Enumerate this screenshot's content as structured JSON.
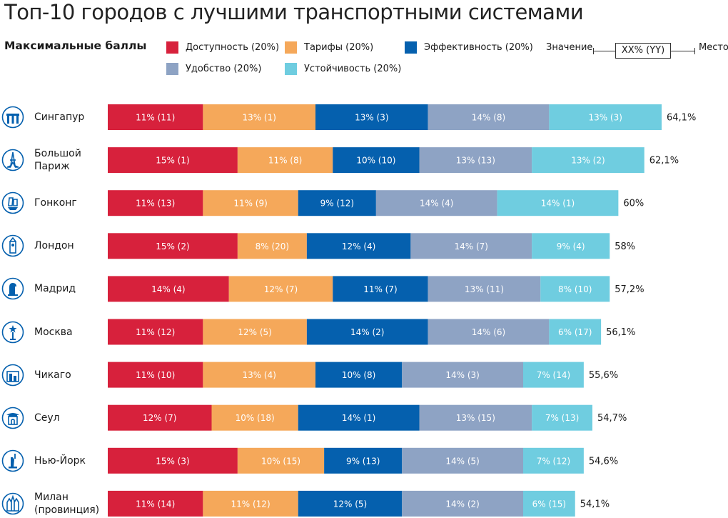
{
  "title": "Топ-10 городов с лучшими транспортными системами",
  "subtitle": "Максимальные баллы",
  "legend": [
    {
      "label": "Доступность (20%)",
      "color": "#d7213c"
    },
    {
      "label": "Тарифы (20%)",
      "color": "#f5a85a"
    },
    {
      "label": "Эффективность (20%)",
      "color": "#0560ae"
    },
    {
      "label": "Удобство (20%)",
      "color": "#8ea3c4"
    },
    {
      "label": "Устойчивость (20%)",
      "color": "#6fcde0"
    }
  ],
  "key": {
    "value_label": "Значение",
    "box_label": "XX% (YY)",
    "rank_label": "Место"
  },
  "chart_data": {
    "type": "bar",
    "orientation": "horizontal",
    "stacked": true,
    "title": "Топ-10 городов с лучшими транспортными системами",
    "categories": [
      {
        "lines": [
          "Сингапур"
        ],
        "icon": "singapore-icon",
        "total": "64,1%"
      },
      {
        "lines": [
          "Большой",
          "Париж"
        ],
        "icon": "eiffel-tower-icon",
        "total": "62,1%"
      },
      {
        "lines": [
          "Гонконг"
        ],
        "icon": "junk-boat-icon",
        "total": "60%"
      },
      {
        "lines": [
          "Лондон"
        ],
        "icon": "big-ben-icon",
        "total": "58%"
      },
      {
        "lines": [
          "Мадрид"
        ],
        "icon": "madrid-icon",
        "total": "57,2%"
      },
      {
        "lines": [
          "Москва"
        ],
        "icon": "kremlin-star-icon",
        "total": "56,1%"
      },
      {
        "lines": [
          "Чикаго"
        ],
        "icon": "chicago-skyline-icon",
        "total": "55,6%"
      },
      {
        "lines": [
          "Сеул"
        ],
        "icon": "seoul-gate-icon",
        "total": "54,7%"
      },
      {
        "lines": [
          "Нью-Йорк"
        ],
        "icon": "statue-of-liberty-icon",
        "total": "54,6%"
      },
      {
        "lines": [
          "Милан",
          "(провинция)"
        ],
        "icon": "milan-cathedral-icon",
        "total": "54,1%"
      }
    ],
    "series": [
      {
        "name": "Доступность (20%)",
        "color": "#d7213c",
        "values": [
          11,
          15,
          11,
          15,
          14,
          11,
          11,
          12,
          15,
          11
        ],
        "ranks": [
          11,
          1,
          13,
          2,
          4,
          12,
          10,
          7,
          3,
          14
        ]
      },
      {
        "name": "Тарифы (20%)",
        "color": "#f5a85a",
        "values": [
          13,
          11,
          11,
          8,
          12,
          12,
          13,
          10,
          10,
          11
        ],
        "ranks": [
          1,
          8,
          9,
          20,
          7,
          5,
          4,
          18,
          15,
          12
        ]
      },
      {
        "name": "Эффективность (20%)",
        "color": "#0560ae",
        "values": [
          13,
          10,
          9,
          12,
          11,
          14,
          10,
          14,
          9,
          12
        ],
        "ranks": [
          3,
          10,
          12,
          4,
          7,
          2,
          8,
          1,
          13,
          5
        ]
      },
      {
        "name": "Удобство (20%)",
        "color": "#8ea3c4",
        "values": [
          14,
          13,
          14,
          14,
          13,
          14,
          14,
          13,
          14,
          14
        ],
        "ranks": [
          8,
          13,
          4,
          7,
          11,
          6,
          3,
          15,
          5,
          2
        ]
      },
      {
        "name": "Устойчивость (20%)",
        "color": "#6fcde0",
        "values": [
          13,
          13,
          14,
          9,
          8,
          6,
          7,
          7,
          7,
          6
        ],
        "ranks": [
          3,
          2,
          1,
          4,
          10,
          17,
          14,
          13,
          12,
          15
        ]
      }
    ],
    "data_label_format": "XX% (YY)",
    "legend_position": "top",
    "grid": false
  }
}
